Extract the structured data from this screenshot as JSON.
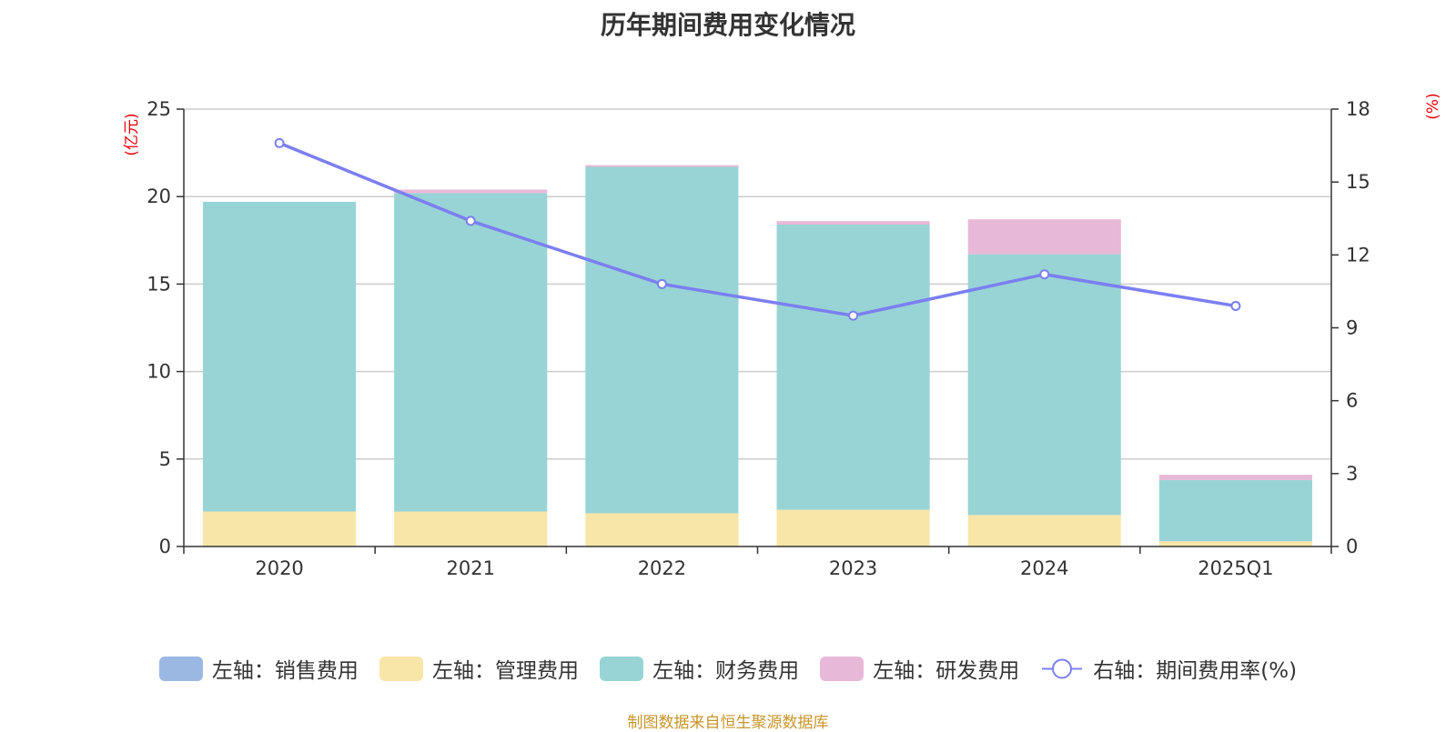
{
  "chart_data": {
    "type": "bar",
    "stacked": true,
    "title": "历年期间费用变化情况",
    "categories": [
      "2020",
      "2021",
      "2022",
      "2023",
      "2024",
      "2025Q1"
    ],
    "left_axis": {
      "unit": "(亿元)",
      "ylim": [
        0,
        25
      ],
      "ticks": [
        "0",
        "5",
        "10",
        "15",
        "20",
        "25"
      ]
    },
    "right_axis": {
      "unit": "(%)",
      "ylim": [
        0,
        18
      ],
      "ticks": [
        "0",
        "3",
        "6",
        "9",
        "12",
        "15",
        "18"
      ]
    },
    "series": [
      {
        "name": "左轴：销售费用",
        "axis": "left",
        "color": "#9bb8e3",
        "values": [
          0,
          0,
          0,
          0,
          0,
          0
        ]
      },
      {
        "name": "左轴：管理费用",
        "axis": "left",
        "color": "#f8e6a8",
        "values": [
          2.0,
          2.0,
          1.9,
          2.1,
          1.8,
          0.3
        ]
      },
      {
        "name": "左轴：财务费用",
        "axis": "left",
        "color": "#98d4d5",
        "values": [
          17.7,
          18.2,
          19.8,
          16.3,
          14.9,
          3.5
        ]
      },
      {
        "name": "左轴：研发费用",
        "axis": "left",
        "color": "#e8b8d8",
        "values": [
          0,
          0.2,
          0.1,
          0.2,
          2.0,
          0.3
        ]
      },
      {
        "name": "右轴：期间费用率(%)",
        "axis": "right",
        "type": "line",
        "color": "#7b7ff0",
        "values": [
          16.6,
          13.4,
          10.8,
          9.5,
          11.2,
          9.9
        ]
      }
    ]
  },
  "source": "制图数据来自恒生聚源数据库"
}
